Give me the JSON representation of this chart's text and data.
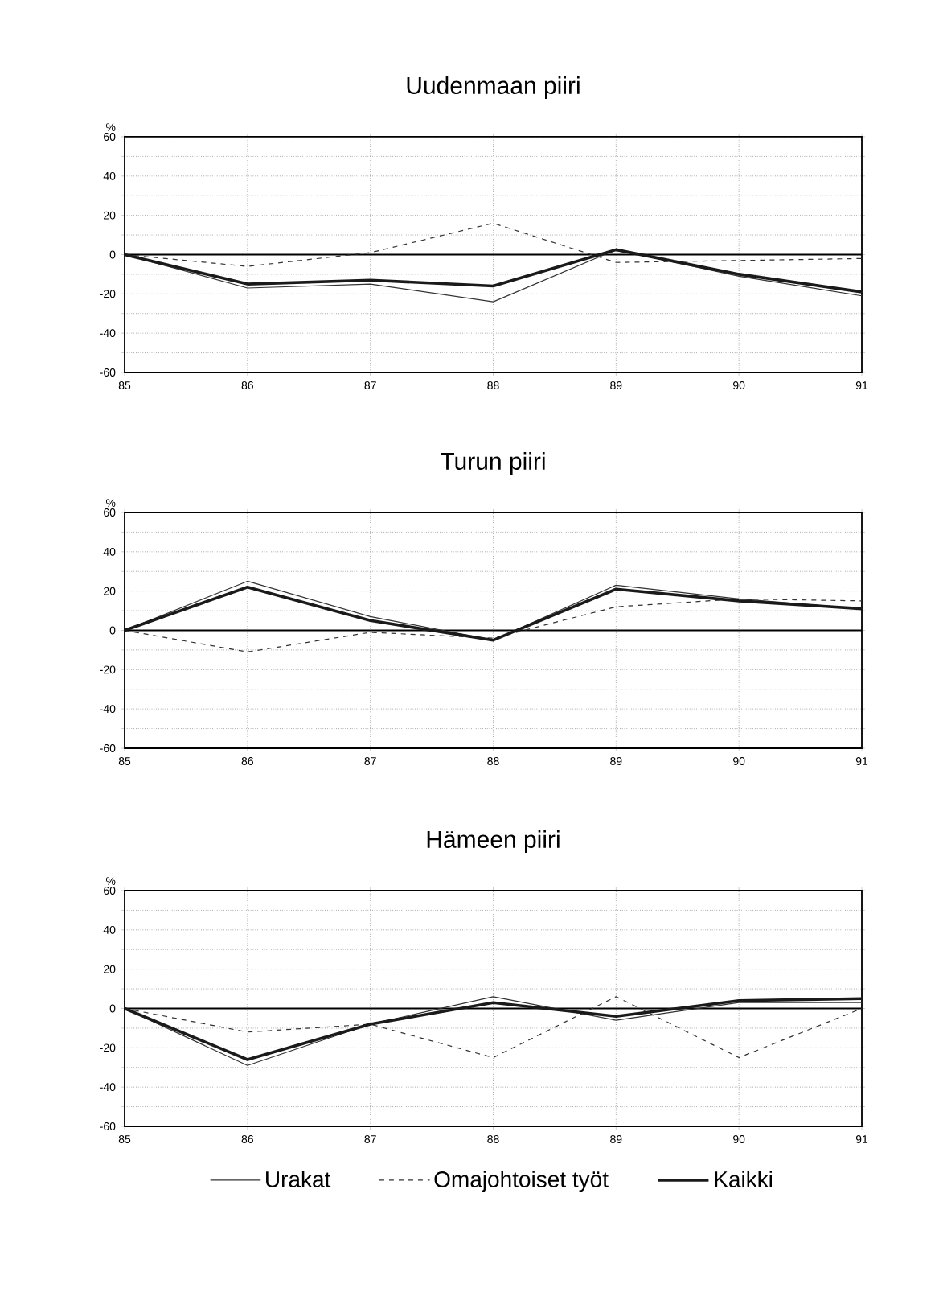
{
  "chart_data": [
    {
      "type": "line",
      "title": "Uudenmaan piiri",
      "ylabel": "%",
      "x": [
        85,
        86,
        87,
        88,
        89,
        90,
        91
      ],
      "xlim": [
        85,
        91
      ],
      "xticks": [
        85,
        86,
        87,
        88,
        89,
        90,
        91
      ],
      "ylim": [
        -60,
        60
      ],
      "yticks": [
        -60,
        {
          "value": -50,
          "label": null
        },
        -40,
        {
          "value": -30,
          "label": null
        },
        -20,
        {
          "value": -10,
          "label": null
        },
        0,
        {
          "value": 10,
          "label": null
        },
        20,
        {
          "value": 30,
          "label": null
        },
        40,
        {
          "value": 50,
          "label": null
        },
        60
      ],
      "grid": true,
      "legend": false,
      "ref_lines": [
        {
          "axis": "y",
          "value": 0,
          "color": "#000000"
        }
      ],
      "series": [
        {
          "color": "#333333",
          "line_style": "solid",
          "values": [
            0,
            -17,
            -15,
            -24,
            2.5,
            -11,
            -21
          ]
        },
        {
          "color": "#333333",
          "line_style": "dashed",
          "values": [
            0,
            -6,
            1,
            16,
            -4,
            -3,
            -2
          ]
        },
        {
          "color": "#1a1a1a",
          "line_style": "solid",
          "values": [
            0,
            -15,
            -13,
            -16,
            2.5,
            -10,
            -19
          ]
        }
      ]
    },
    {
      "type": "line",
      "title": "Turun piiri",
      "ylabel": "%",
      "x": [
        85,
        86,
        87,
        88,
        89,
        90,
        91
      ],
      "xlim": [
        85,
        91
      ],
      "xticks": [
        85,
        86,
        87,
        88,
        89,
        90,
        91
      ],
      "ylim": [
        -60,
        60
      ],
      "yticks": [
        -60,
        {
          "value": -50,
          "label": null
        },
        -40,
        {
          "value": -30,
          "label": null
        },
        -20,
        {
          "value": -10,
          "label": null
        },
        0,
        {
          "value": 10,
          "label": null
        },
        20,
        {
          "value": 30,
          "label": null
        },
        40,
        {
          "value": 50,
          "label": null
        },
        60
      ],
      "grid": true,
      "legend": false,
      "ref_lines": [
        {
          "axis": "y",
          "value": 0,
          "color": "#000000"
        }
      ],
      "series": [
        {
          "color": "#333333",
          "line_style": "solid",
          "values": [
            0,
            25,
            7,
            -5,
            23,
            16,
            11
          ]
        },
        {
          "color": "#333333",
          "line_style": "dashed",
          "values": [
            0,
            -11,
            -1,
            -4,
            12,
            16,
            15
          ]
        },
        {
          "color": "#1a1a1a",
          "line_style": "solid",
          "values": [
            0,
            22,
            5,
            -5,
            21,
            15,
            11
          ]
        }
      ]
    },
    {
      "type": "line",
      "title": "Hämeen piiri",
      "ylabel": "%",
      "x": [
        85,
        86,
        87,
        88,
        89,
        90,
        91
      ],
      "xlim": [
        85,
        91
      ],
      "xticks": [
        85,
        86,
        87,
        88,
        89,
        90,
        91
      ],
      "ylim": [
        -60,
        60
      ],
      "yticks": [
        -60,
        {
          "value": -50,
          "label": null
        },
        -40,
        {
          "value": -30,
          "label": null
        },
        -20,
        {
          "value": -10,
          "label": null
        },
        0,
        {
          "value": 10,
          "label": null
        },
        20,
        {
          "value": 30,
          "label": null
        },
        40,
        {
          "value": 50,
          "label": null
        },
        60
      ],
      "grid": true,
      "legend": "bottom",
      "ref_lines": [
        {
          "axis": "y",
          "value": 0,
          "color": "#000000"
        }
      ],
      "series": [
        {
          "name": "Urakat",
          "color": "#333333",
          "line_style": "solid",
          "values": [
            0,
            -29,
            -8,
            6,
            -6,
            3,
            3
          ]
        },
        {
          "name": "Omajohtoiset työt",
          "color": "#333333",
          "line_style": "dashed",
          "values": [
            0,
            -12,
            -8,
            -25,
            6,
            -25,
            0
          ]
        },
        {
          "name": "Kaikki",
          "color": "#1a1a1a",
          "line_style": "solid",
          "values": [
            0,
            -26,
            -8,
            3,
            -4,
            4,
            5
          ]
        }
      ]
    }
  ]
}
